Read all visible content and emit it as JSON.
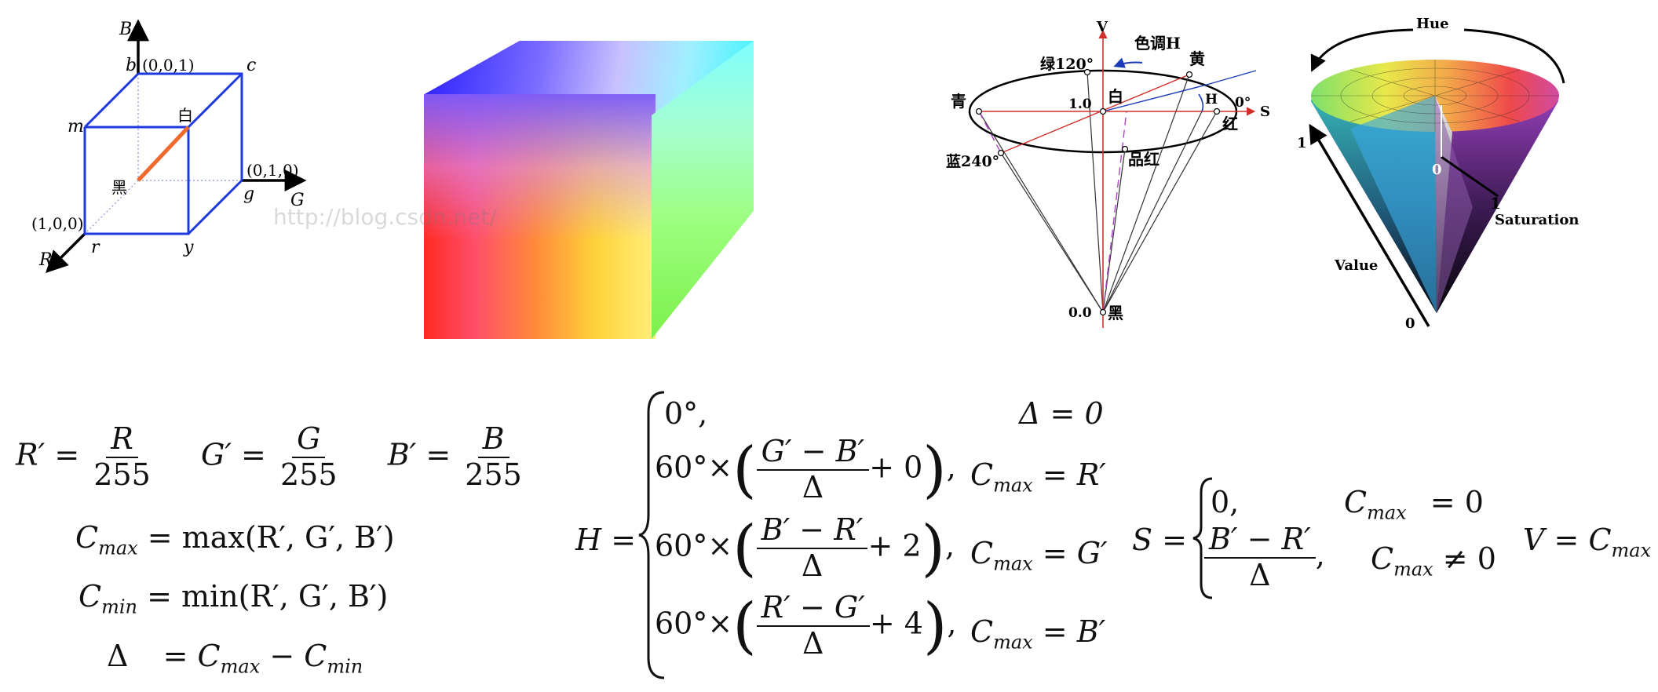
{
  "rgb_cube": {
    "axis_labels": {
      "b_axis": "B",
      "g_axis": "G",
      "r_axis": "R"
    },
    "vertices": {
      "b": "b",
      "c": "c",
      "m": "m",
      "g": "g",
      "r": "r",
      "y": "y",
      "b_coord": "(0,0,1)",
      "g_coord": "(0,1,0)",
      "r_coord": "(1,0,0)",
      "white": "白",
      "black": "黑"
    },
    "watermark": "http://blog.csdn.net/"
  },
  "hsv_hexcone": {
    "axis_v": "V",
    "axis_s": "S",
    "hue_label": "色调H",
    "hue_small": "H",
    "green": "绿120°",
    "yellow": "黄",
    "cyan": "青",
    "white": "白",
    "value_top": "1.0",
    "red_deg": "0°",
    "red": "红",
    "blue": "蓝240°",
    "magenta": "品红",
    "value_bottom": "0.0",
    "black": "黑"
  },
  "hsv_cone": {
    "hue": "Hue",
    "value": "Value",
    "saturation": "Saturation",
    "one_left": "1",
    "zero_center": "0",
    "one_sat": "1",
    "zero_bottom": "0"
  },
  "formulas": {
    "normalize": {
      "r_prime": "R′ =",
      "r_num": "R",
      "g_prime": "G′ =",
      "g_num": "G",
      "b_prime": "B′ =",
      "b_num": "B",
      "den": "255"
    },
    "cmax": {
      "lhs": "C",
      "lhs_sub": "max",
      "rhs": "= max(R′, G′, B′)"
    },
    "cmin": {
      "lhs": "C",
      "lhs_sub": "min",
      "rhs": "= min(R′, G′, B′)"
    },
    "delta": {
      "lhs": "Δ",
      "rhs": "= C",
      "sub1": "max",
      "minus": " − C",
      "sub2": "min"
    },
    "hue": {
      "lhs": "H =",
      "case0": "0°,",
      "cond0": "Δ = 0",
      "prefix": "60°×",
      "num1": "G′ − B′",
      "add1": "+ 0",
      "cond1_rhs": "= R′",
      "num2": "B′ − R′",
      "add2": "+ 2",
      "cond2_rhs": "= G′",
      "num3": "R′ − G′",
      "add3": "+ 4",
      "cond3_rhs": "= B′",
      "den": "Δ",
      "cmax": "C",
      "cmax_sub": "max"
    },
    "saturation": {
      "lhs": "S =",
      "case0": "0,",
      "cond0": "= 0",
      "num": "B′ − R′",
      "den": "Δ",
      "cond1": "≠ 0",
      "cmax": "C",
      "cmax_sub": "max"
    },
    "value": {
      "lhs": "V = C",
      "sub": "max"
    }
  }
}
